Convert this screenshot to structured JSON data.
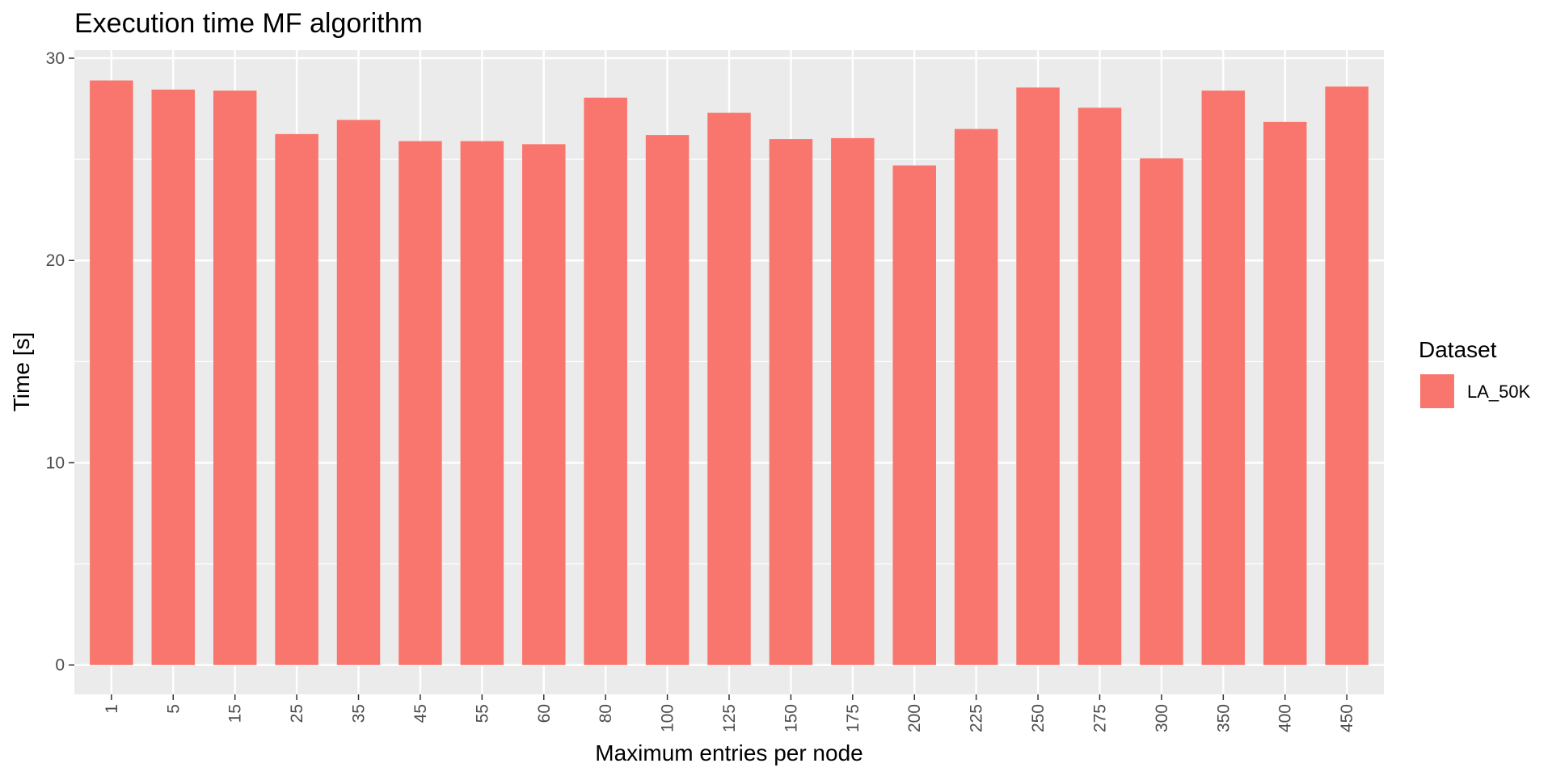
{
  "chart_data": {
    "type": "bar",
    "title": "Execution time MF algorithm",
    "xlabel": "Maximum entries per node",
    "ylabel": "Time [s]",
    "categories": [
      "1",
      "5",
      "15",
      "25",
      "35",
      "45",
      "55",
      "60",
      "80",
      "100",
      "125",
      "150",
      "175",
      "200",
      "225",
      "250",
      "275",
      "300",
      "350",
      "400",
      "450"
    ],
    "series": [
      {
        "name": "LA_50K",
        "color": "#F8766D",
        "values": [
          28.9,
          28.45,
          28.4,
          26.25,
          26.95,
          25.9,
          25.9,
          25.75,
          28.05,
          26.2,
          27.3,
          26.0,
          26.05,
          24.7,
          26.5,
          28.55,
          27.55,
          25.05,
          28.4,
          26.85,
          28.6
        ]
      }
    ],
    "ylim": [
      -1.45,
      30.4
    ],
    "yticks": [
      0,
      10,
      20,
      30
    ],
    "grid": true,
    "panel_background": "#EBEBEB",
    "grid_color": "#FFFFFF",
    "legend": {
      "title": "Dataset",
      "placement": "right"
    }
  }
}
